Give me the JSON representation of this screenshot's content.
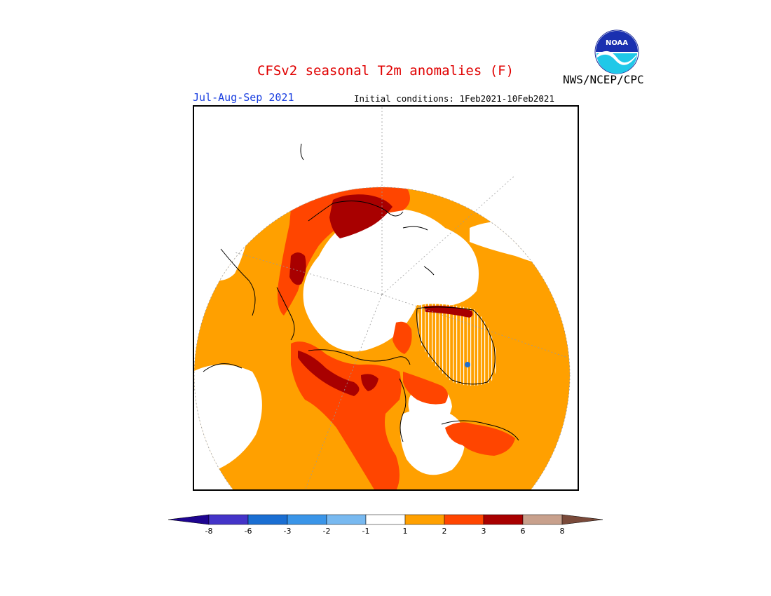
{
  "header": {
    "title": "CFSv2 seasonal T2m anomalies (F)",
    "period": "Jul-Aug-Sep 2021",
    "initial_conditions": "Initial conditions: 1Feb2021-10Feb2021",
    "agency": "NWS/NCEP/CPC",
    "logo_text": "NOAA"
  },
  "map": {
    "projection": "north-polar-stereographic",
    "variable": "T2m anomaly",
    "units": "F"
  },
  "colorbar": {
    "ticks": [
      "-8",
      "-6",
      "-3",
      "-2",
      "-1",
      "1",
      "2",
      "3",
      "6",
      "8"
    ],
    "colors": [
      "#1e0490",
      "#4434c8",
      "#1a6ed2",
      "#3a95e8",
      "#78b9f0",
      "#ffffff",
      "#ffa000",
      "#ff4500",
      "#a80000",
      "#c8a08c",
      "#7a4a3a"
    ],
    "palette": {
      "near_normal": "#ffffff",
      "above_1": "#ffa000",
      "above_2": "#ff4500",
      "above_3": "#a80000",
      "below_neg3": "#1a6ed2"
    }
  }
}
